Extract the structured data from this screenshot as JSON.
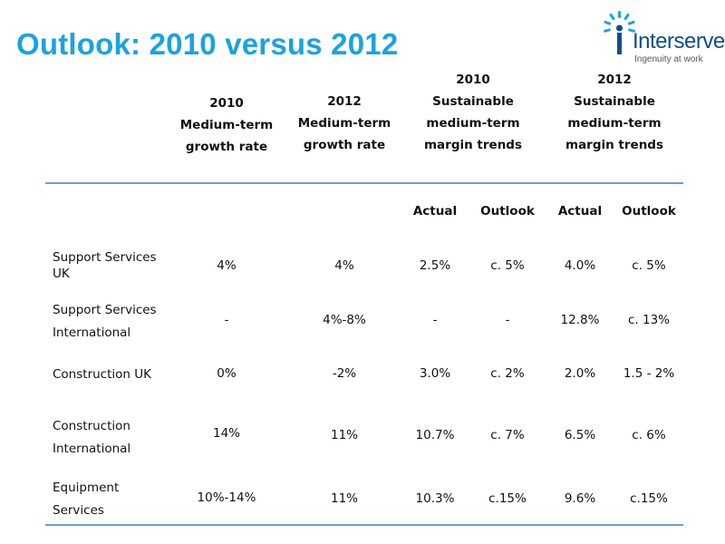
{
  "title": "Outlook: 2010 versus 2012",
  "logo": {
    "name": "Interserve",
    "tagline": "Ingenuity at work",
    "brand_color": "#1aa3df",
    "logo_color": "#0b4f8a"
  },
  "headers": {
    "h1": [
      "2010",
      "Medium-term",
      "growth rate"
    ],
    "h2": [
      "2012",
      "Medium-term",
      "growth rate"
    ],
    "h3": [
      "2010",
      "Sustainable",
      "medium-term",
      "margin trends"
    ],
    "h4": [
      "2012",
      "Sustainable",
      "medium-term",
      "margin trends"
    ]
  },
  "subheaders": [
    "Actual",
    "Outlook",
    "Actual",
    "Outlook"
  ],
  "rows": [
    {
      "label": [
        "Support Services",
        "UK"
      ],
      "values": [
        "4%",
        "4%",
        "2.5%",
        "c. 5%",
        "4.0%",
        "c. 5%"
      ]
    },
    {
      "label": [
        "Support Services",
        "International"
      ],
      "values": [
        "-",
        "4%-8%",
        "-",
        "-",
        "12.8%",
        "c. 13%"
      ]
    },
    {
      "label": [
        "Construction UK"
      ],
      "values": [
        "0%",
        "-2%",
        "3.0%",
        "c. 2%",
        "2.0%",
        "1.5 - 2%"
      ]
    },
    {
      "label": [
        "Construction",
        "International"
      ],
      "values": [
        "14%",
        "11%",
        "10.7%",
        "c. 7%",
        "6.5%",
        "c. 6%"
      ]
    },
    {
      "label": [
        "Equipment",
        "Services"
      ],
      "values": [
        "10%-14%",
        "11%",
        "10.3%",
        "c.15%",
        "9.6%",
        "c.15%"
      ]
    }
  ]
}
